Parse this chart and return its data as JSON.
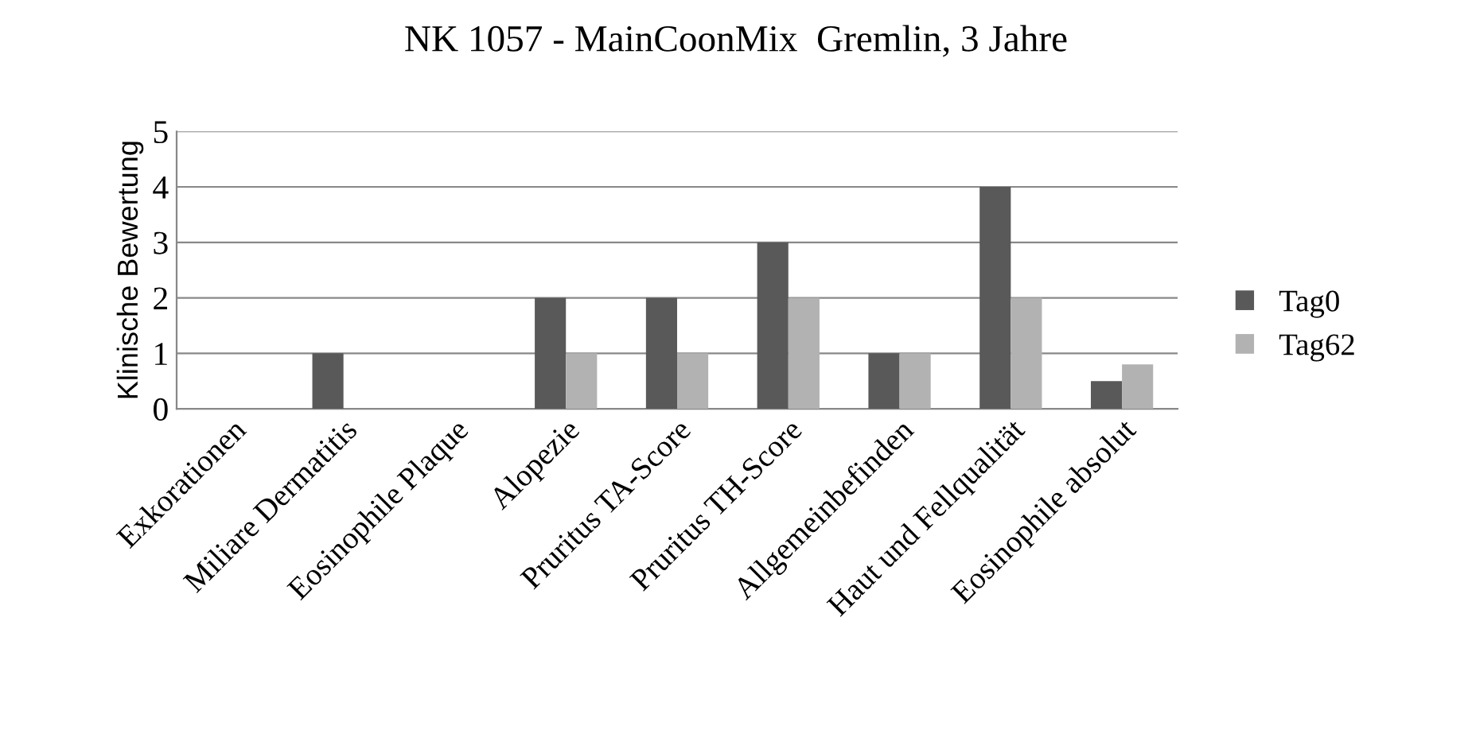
{
  "chart_data": {
    "type": "bar",
    "title": "NK 1057 - MainCoonMix  Gremlin, 3 Jahre",
    "ylabel": "Klinische Bewertung",
    "categories": [
      "Exkorationen",
      "Miliare Dermatitis",
      "Eosinophile Plaque",
      "Alopezie",
      "Pruritus TA-Score",
      "Pruritus TH-Score",
      "Allgemeinbefinden",
      "Haut und Fellqualität",
      "Eosinophile absolut"
    ],
    "series": [
      {
        "name": "Tag0",
        "color": "#595959",
        "values": [
          0,
          1,
          0,
          2,
          2,
          3,
          1,
          4,
          0.5
        ]
      },
      {
        "name": "Tag62",
        "color": "#b2b2b2",
        "values": [
          0,
          0,
          0,
          1,
          1,
          2,
          1,
          2,
          0.8
        ]
      }
    ],
    "ylim": [
      0,
      5
    ],
    "yticks": [
      0,
      1,
      2,
      3,
      4,
      5
    ],
    "grid": "y",
    "legend": "right"
  }
}
